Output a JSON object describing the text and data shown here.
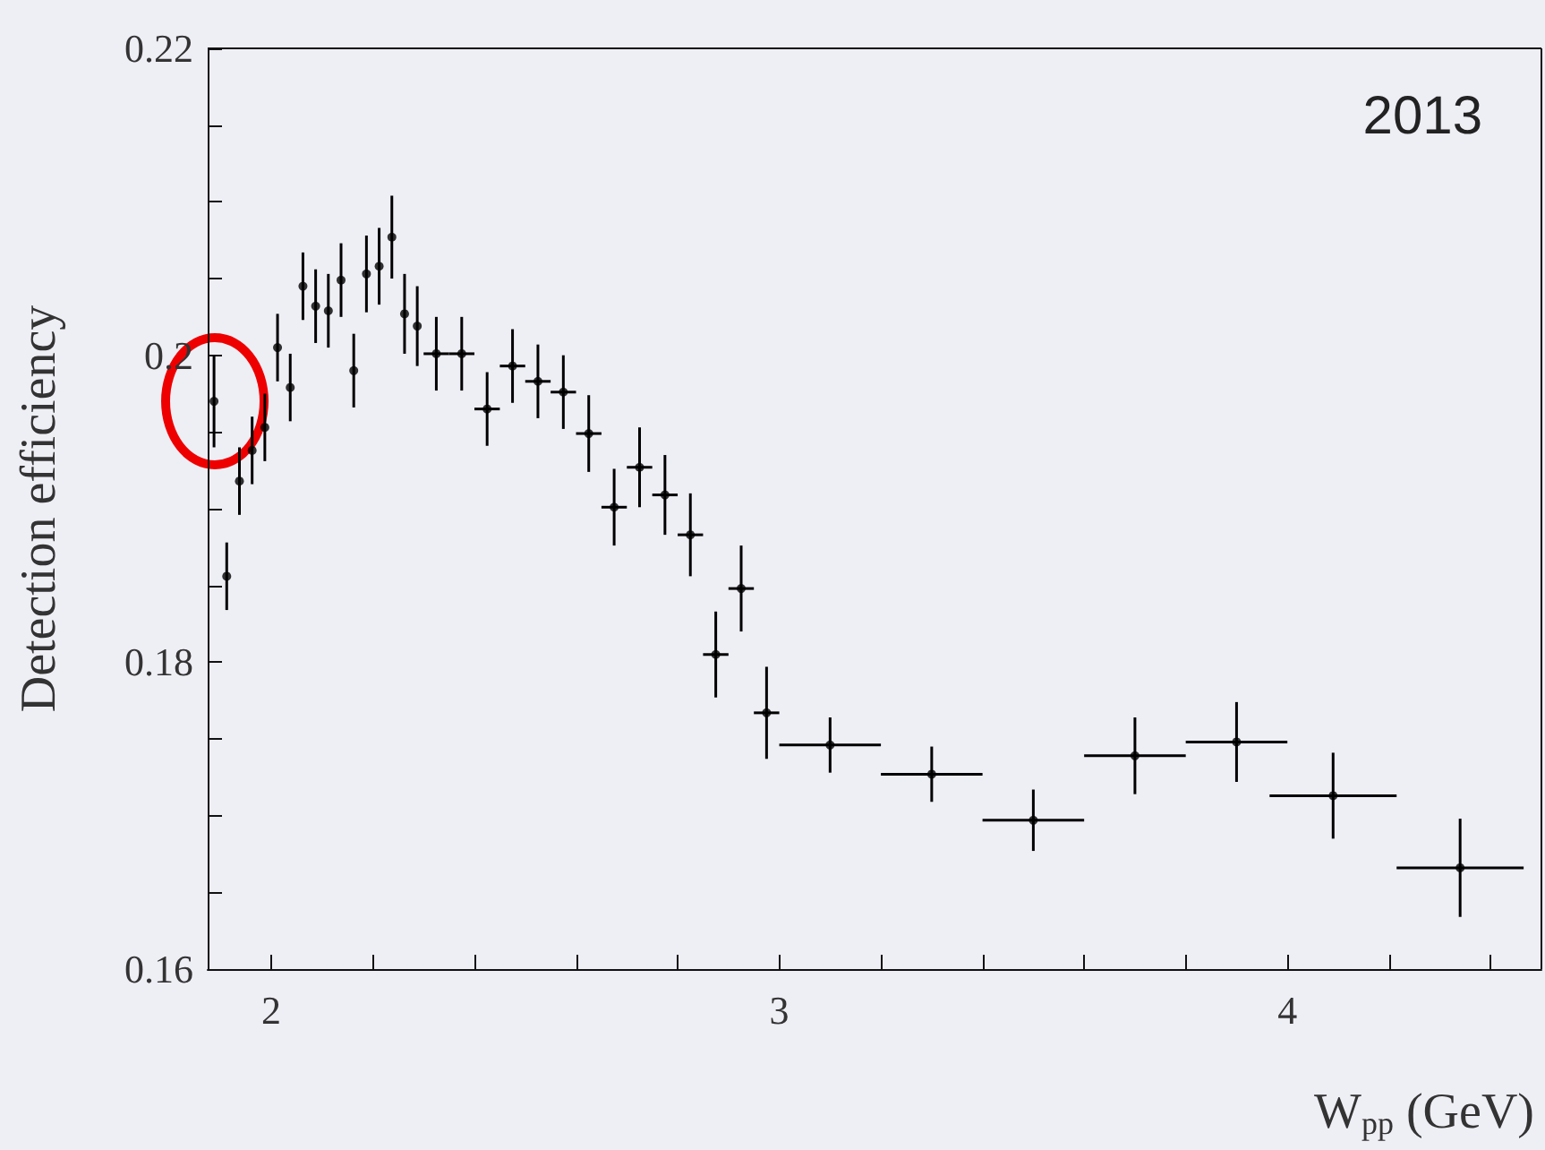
{
  "chart_data": {
    "type": "scatter",
    "xlabel": "W$_{pp}$ (GeV)",
    "ylabel": "Detection efficiency",
    "annotations": [
      "2013"
    ],
    "x": [
      1.8875,
      1.9125,
      1.9375,
      1.9625,
      1.9875,
      2.0125,
      2.0375,
      2.0625,
      2.0875,
      2.1125,
      2.1375,
      2.1625,
      2.1875,
      2.2125,
      2.2375,
      2.2625,
      2.2875,
      2.325,
      2.375,
      2.425,
      2.475,
      2.525,
      2.575,
      2.625,
      2.675,
      2.725,
      2.775,
      2.825,
      2.875,
      2.925,
      2.975,
      3.1,
      3.3,
      3.5,
      3.7,
      3.9,
      4.09,
      4.34
    ],
    "values": [
      0.197,
      0.1856,
      0.1918,
      0.1938,
      0.1953,
      0.2005,
      0.1979,
      0.2045,
      0.2032,
      0.2029,
      0.2049,
      0.199,
      0.2053,
      0.2058,
      0.2077,
      0.2027,
      0.2019,
      0.2001,
      0.2001,
      0.1965,
      0.1993,
      0.1983,
      0.1976,
      0.1949,
      0.1901,
      0.1927,
      0.1909,
      0.1883,
      0.1805,
      0.1848,
      0.1767,
      0.1746,
      0.1727,
      0.1697,
      0.1739,
      0.1748,
      0.1713,
      0.1666
    ],
    "errors": [
      0.003,
      0.0022,
      0.0022,
      0.0022,
      0.0022,
      0.0022,
      0.0022,
      0.0022,
      0.0024,
      0.0024,
      0.0024,
      0.0024,
      0.0025,
      0.0025,
      0.0027,
      0.0026,
      0.0026,
      0.0024,
      0.0024,
      0.0024,
      0.0024,
      0.0024,
      0.0024,
      0.0025,
      0.0025,
      0.0026,
      0.0026,
      0.0027,
      0.0028,
      0.0028,
      0.003,
      0.0018,
      0.0018,
      0.002,
      0.0025,
      0.0026,
      0.0028,
      0.0032
    ],
    "xerrors": [
      null,
      null,
      null,
      null,
      null,
      null,
      null,
      null,
      null,
      null,
      null,
      null,
      null,
      null,
      null,
      null,
      null,
      0.025,
      0.025,
      0.025,
      0.025,
      0.025,
      0.025,
      0.025,
      0.025,
      0.025,
      0.025,
      0.025,
      0.025,
      0.025,
      0.025,
      0.1,
      0.1,
      0.1,
      0.1,
      0.1,
      0.125,
      0.125
    ],
    "color": "#000000",
    "marker": "circle",
    "grid": false,
    "xlim": [
      1.875,
      4.5
    ],
    "xticks": [
      2,
      {
        "value": 2.2,
        "label": null
      },
      {
        "value": 2.4,
        "label": null
      },
      {
        "value": 2.6,
        "label": null
      },
      {
        "value": 2.8,
        "label": null
      },
      3,
      {
        "value": 3.2,
        "label": null
      },
      {
        "value": 3.4,
        "label": null
      },
      {
        "value": 3.6,
        "label": null
      },
      {
        "value": 3.8,
        "label": null
      },
      4,
      {
        "value": 4.2,
        "label": null
      },
      {
        "value": 4.4,
        "label": null
      }
    ],
    "ylim": [
      0.16,
      0.22
    ],
    "yticks": [
      0.16,
      {
        "value": 0.165,
        "label": null
      },
      {
        "value": 0.17,
        "label": null
      },
      {
        "value": 0.175,
        "label": null
      },
      0.18,
      {
        "value": 0.185,
        "label": null
      },
      {
        "value": 0.19,
        "label": null
      },
      {
        "value": 0.195,
        "label": null
      },
      {
        "value": 0.2,
        "label": "0.2"
      },
      {
        "value": 0.205,
        "label": null
      },
      {
        "value": 0.21,
        "label": null
      },
      {
        "value": 0.215,
        "label": null
      },
      0.22
    ]
  }
}
